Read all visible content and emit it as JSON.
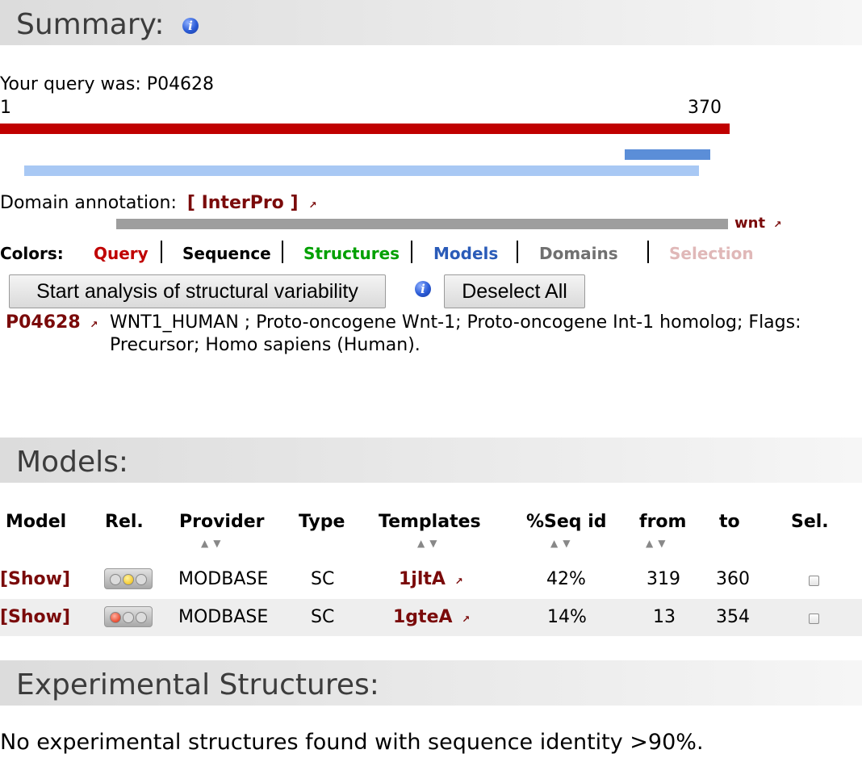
{
  "summary": {
    "title": "Summary:",
    "query_label": "Your query was: P04628",
    "range_start": "1",
    "range_end": "370",
    "domain_label": "Domain annotation:",
    "interpro_link": "[ InterPro ]",
    "domain_name": "wnt",
    "colors_label": "Colors:",
    "legend": {
      "query": "Query",
      "sequence": "Sequence",
      "structures": "Structures",
      "models": "Models",
      "domains": "Domains",
      "selection": "Selection"
    },
    "colors": {
      "query": "#c00000",
      "structures": "#00a000",
      "models": "#2a5bb8",
      "domains": "#707070",
      "selection": "#e0b8b8",
      "maroon": "#7a0a0a"
    },
    "start_analysis_button": "Start analysis of structural variability",
    "deselect_button": "Deselect All",
    "entry_id": "P04628",
    "entry_description_line1": "WNT1_HUMAN ; Proto-oncogene Wnt-1; Proto-oncogene Int-1 homolog; Flags:",
    "entry_description_line2": "Precursor; Homo sapiens (Human)."
  },
  "models": {
    "title": "Models:",
    "columns": {
      "model": "Model",
      "rel": "Rel.",
      "provider": "Provider",
      "type": "Type",
      "templates": "Templates",
      "seqid": "%Seq id",
      "from": "from",
      "to": "to",
      "sel": "Sel."
    },
    "rows": [
      {
        "show": "[Show]",
        "reliability": "medium",
        "provider": "MODBASE",
        "type": "SC",
        "template": "1jltA",
        "seqid": "42%",
        "from": "319",
        "to": "360"
      },
      {
        "show": "[Show]",
        "reliability": "low",
        "provider": "MODBASE",
        "type": "SC",
        "template": "1gteA",
        "seqid": "14%",
        "from": "13",
        "to": "354"
      }
    ]
  },
  "experimental": {
    "title": "Experimental Structures:",
    "message": "No experimental structures found with sequence identity >90%."
  }
}
